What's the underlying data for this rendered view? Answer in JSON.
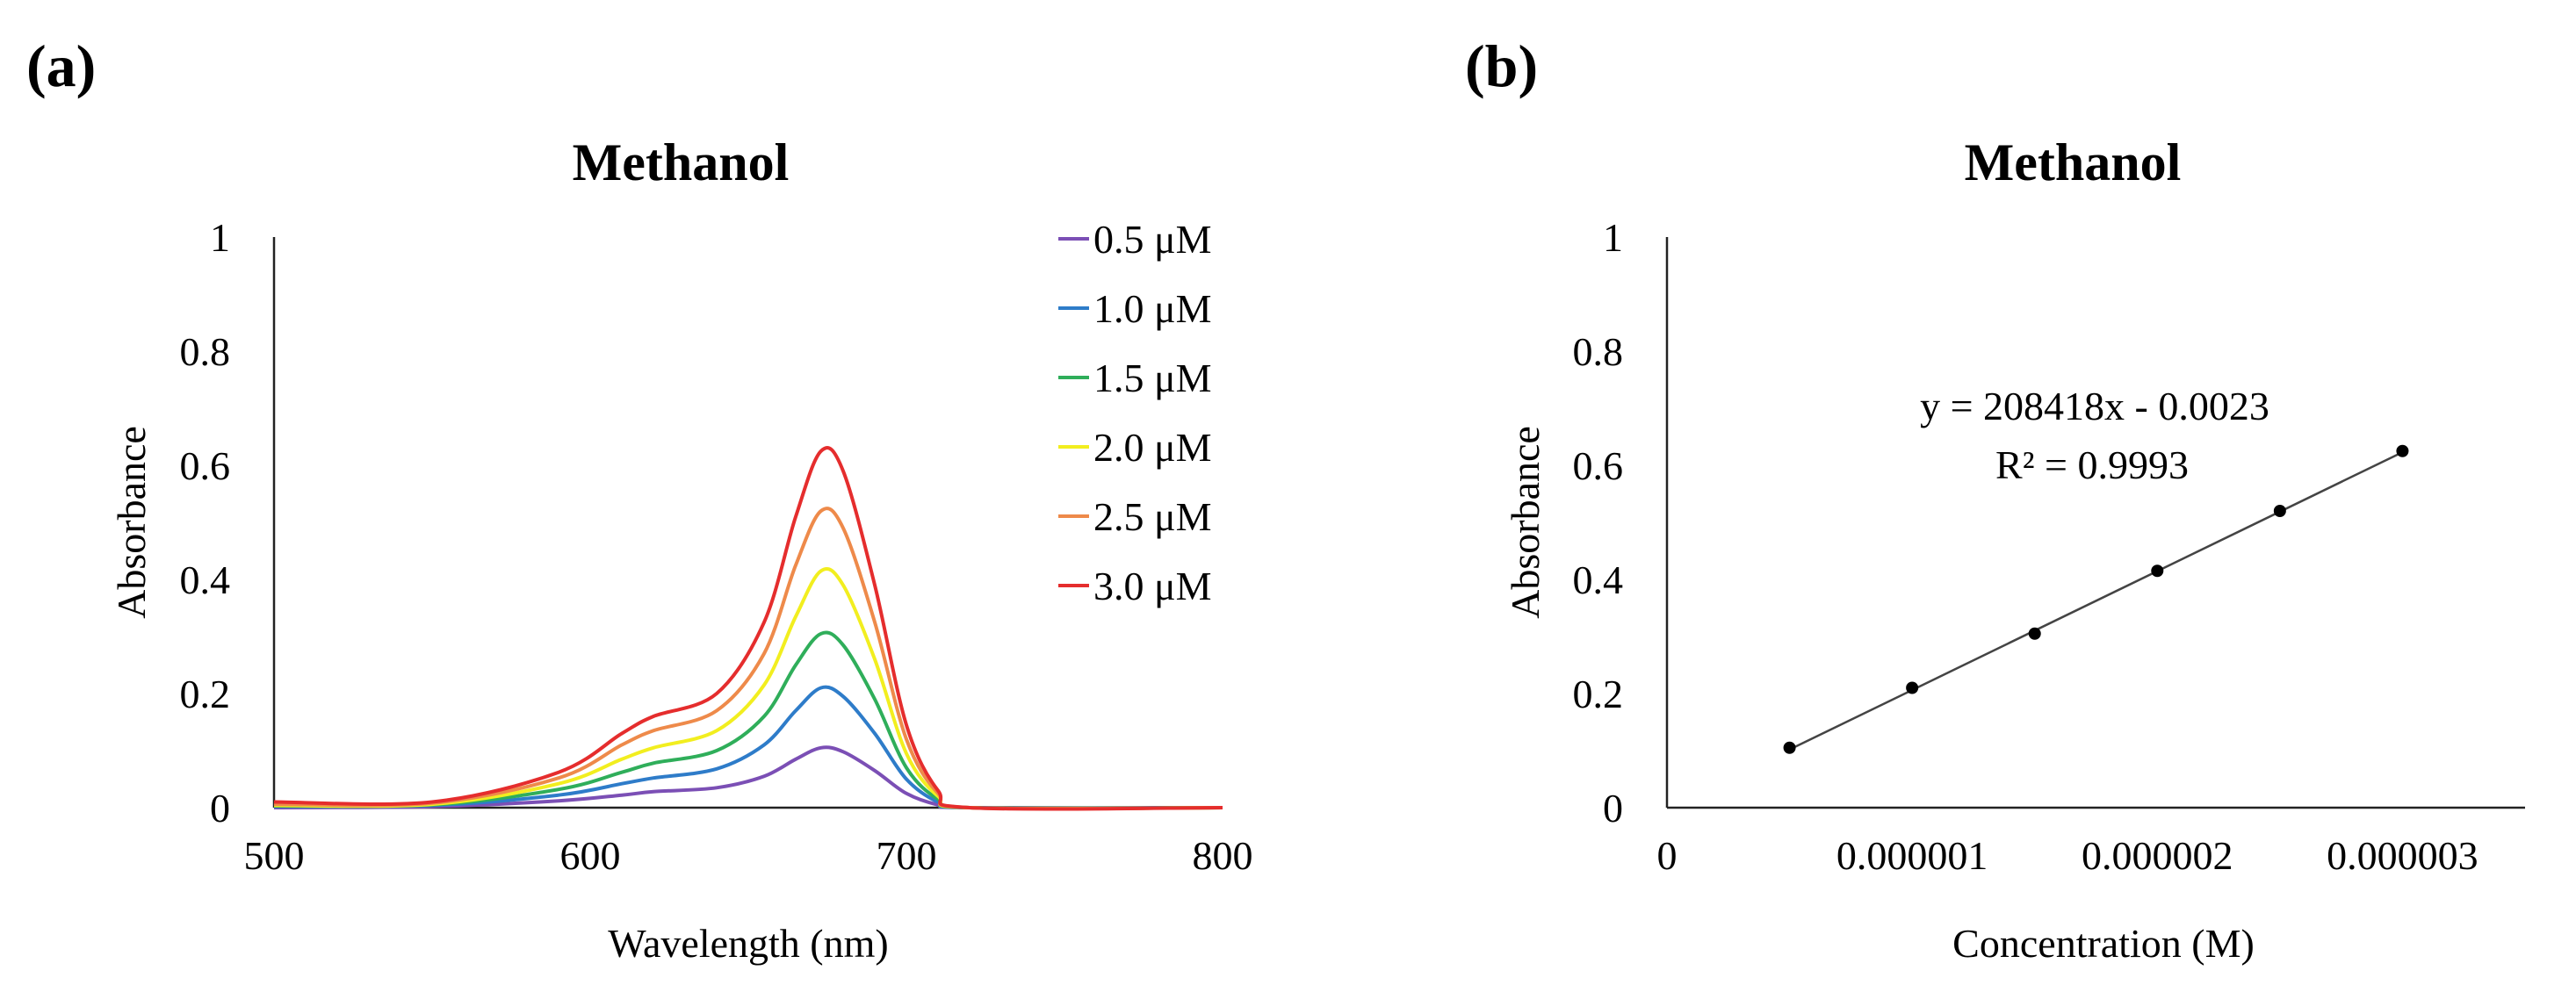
{
  "chart_data": [
    {
      "panel_label": "(a)",
      "type": "line",
      "title": "Methanol",
      "xlabel": "Wavelength (nm)",
      "ylabel": "Absorbance",
      "xlim": [
        500,
        800
      ],
      "ylim": [
        0,
        1
      ],
      "x_ticks": [
        "500",
        "600",
        "700",
        "800"
      ],
      "y_ticks": [
        "0",
        "0.2",
        "0.4",
        "0.6",
        "0.8",
        "1"
      ],
      "x_tick_values": [
        500,
        600,
        700,
        800
      ],
      "y_tick_values": [
        0,
        0.2,
        0.4,
        0.6,
        0.8,
        1
      ],
      "legend_position": "top-right",
      "x": [
        500,
        550,
        590,
        610,
        620,
        640,
        655,
        665,
        673,
        680,
        690,
        700,
        710,
        720,
        800
      ],
      "series": [
        {
          "name": "0.5 μM",
          "color": "#7b4fb5",
          "values": [
            0.0,
            0.002,
            0.012,
            0.022,
            0.028,
            0.035,
            0.055,
            0.085,
            0.105,
            0.098,
            0.065,
            0.025,
            0.005,
            0.0,
            0.0
          ]
        },
        {
          "name": "1.0 μM",
          "color": "#2e7cc9",
          "values": [
            0.002,
            0.004,
            0.022,
            0.042,
            0.052,
            0.068,
            0.11,
            0.17,
            0.21,
            0.195,
            0.13,
            0.05,
            0.01,
            0.0,
            0.0
          ]
        },
        {
          "name": "1.5 μM",
          "color": "#2fae5a",
          "values": [
            0.003,
            0.005,
            0.032,
            0.062,
            0.078,
            0.1,
            0.16,
            0.25,
            0.305,
            0.285,
            0.19,
            0.07,
            0.015,
            0.0,
            0.0
          ]
        },
        {
          "name": "2.0 μM",
          "color": "#f2ee1f",
          "values": [
            0.004,
            0.006,
            0.042,
            0.085,
            0.105,
            0.135,
            0.215,
            0.335,
            0.415,
            0.39,
            0.26,
            0.095,
            0.02,
            0.0,
            0.0
          ]
        },
        {
          "name": "2.5 μM",
          "color": "#ee8a4a",
          "values": [
            0.006,
            0.008,
            0.052,
            0.11,
            0.135,
            0.17,
            0.27,
            0.425,
            0.52,
            0.49,
            0.325,
            0.12,
            0.025,
            0.0,
            0.0
          ]
        },
        {
          "name": "3.0 μM",
          "color": "#e52d2d",
          "values": [
            0.01,
            0.01,
            0.062,
            0.13,
            0.16,
            0.2,
            0.325,
            0.51,
            0.625,
            0.59,
            0.39,
            0.145,
            0.03,
            0.0,
            0.0
          ]
        }
      ]
    },
    {
      "panel_label": "(b)",
      "type": "scatter",
      "title": "Methanol",
      "xlabel": "Concentration (M)",
      "ylabel": "Absorbance",
      "xlim": [
        0,
        3.5e-06
      ],
      "ylim": [
        0,
        1
      ],
      "x_ticks": [
        "0",
        "0.000001",
        "0.000002",
        "0.000003"
      ],
      "y_ticks": [
        "0",
        "0.2",
        "0.4",
        "0.6",
        "0.8",
        "1"
      ],
      "x_tick_values": [
        0,
        1e-06,
        2e-06,
        3e-06
      ],
      "y_tick_values": [
        0,
        0.2,
        0.4,
        0.6,
        0.8,
        1
      ],
      "x": [
        5e-07,
        1e-06,
        1.5e-06,
        2e-06,
        2.5e-06,
        3e-06
      ],
      "y": [
        0.105,
        0.21,
        0.305,
        0.415,
        0.52,
        0.625
      ],
      "trendline": {
        "slope": 208418,
        "intercept": -0.0023,
        "color": "#444444"
      },
      "equation": "y = 208418x - 0.0023",
      "r_squared": "R² = 0.9993"
    }
  ]
}
